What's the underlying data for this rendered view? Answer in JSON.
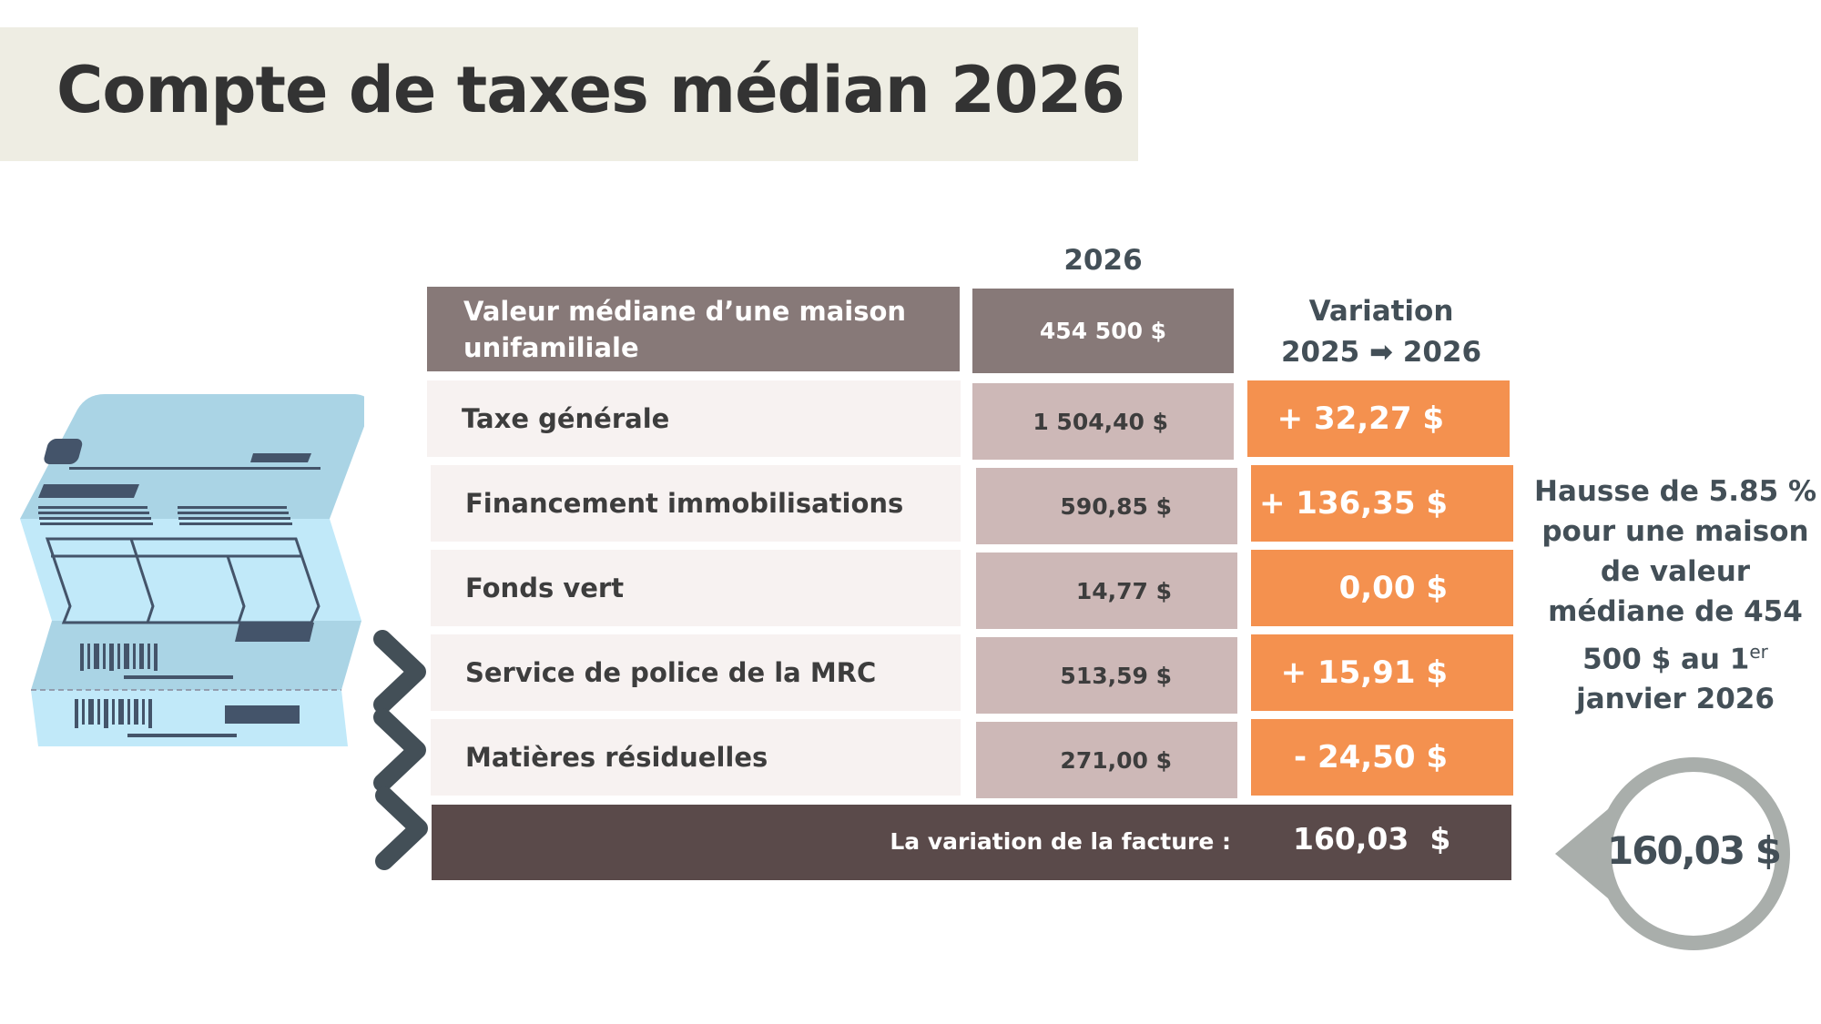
{
  "title": "Compte de taxes médian 2026",
  "column_year": "2026",
  "variation_header": {
    "line1": "Variation",
    "line2": "2025 ➡ 2026"
  },
  "house_value": {
    "label": "Valeur médiane d’une maison unifamiliale",
    "value": "454 500 $"
  },
  "rows": [
    {
      "label": "Taxe générale",
      "value": "1 504,40 $",
      "variation": "+ 32,27 $"
    },
    {
      "label": "Financement immobilisations",
      "value": "590,85 $",
      "variation": "+ 136,35 $"
    },
    {
      "label": "Fonds vert",
      "value": "14,77 $",
      "variation": "0,00 $"
    },
    {
      "label": "Service de police de la MRC",
      "value": "513,59 $",
      "variation": "+ 15,91 $"
    },
    {
      "label": "Matières résiduelles",
      "value": "271,00 $",
      "variation": "- 24,50 $"
    }
  ],
  "total": {
    "label": "La variation de la facture :",
    "value": "160,03  $"
  },
  "side_note": {
    "text": "Hausse de 5.85 % pour une maison de valeur médiane de 454 500 $ au ",
    "ordinal_num": "1",
    "ordinal_sup": "er",
    "date_rest": " janvier 2026"
  },
  "bubble": {
    "value": "160,03 $"
  },
  "colors": {
    "orange": "#f4914f",
    "header_brown": "#877978",
    "value_cell": "#cdb8b7",
    "total_bar": "#5a4a4a",
    "dark_text": "#434f57",
    "bill_blue": "#aad4e5"
  },
  "icons": [
    "tax-bill-illustration",
    "chevron-right-icon"
  ]
}
